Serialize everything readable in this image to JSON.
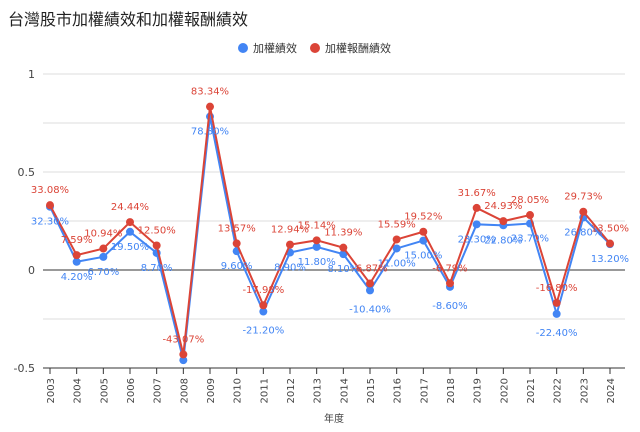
{
  "chart_data": {
    "type": "line",
    "title": "台灣股市加權績效和加權報酬績效",
    "xlabel": "年度",
    "ylabel": "",
    "ylim": [
      -0.5,
      1
    ],
    "yticks": [
      "1",
      "0.5",
      "0",
      "-0.5"
    ],
    "grid": true,
    "legend_position": "top",
    "categories": [
      "2003",
      "2004",
      "2005",
      "2006",
      "2007",
      "2008",
      "2009",
      "2010",
      "2011",
      "2012",
      "2013",
      "2014",
      "2015",
      "2016",
      "2017",
      "2018",
      "2019",
      "2020",
      "2021",
      "2022",
      "2023",
      "2024"
    ],
    "series": [
      {
        "name": "加權績效",
        "color": "#4285f4",
        "values": [
          0.323,
          0.042,
          0.067,
          0.195,
          0.087,
          -0.46,
          0.783,
          0.096,
          -0.212,
          0.089,
          0.118,
          0.081,
          -0.104,
          0.11,
          0.15,
          -0.086,
          0.233,
          0.228,
          0.237,
          -0.224,
          0.268,
          0.132
        ],
        "labels": [
          "32.30%",
          "4.20%",
          "6.70%",
          "19.50%",
          "8.70%",
          null,
          "78.30%",
          "9.60%",
          "-21.20%",
          "8.90%",
          "11.80%",
          "8.10%",
          "-10.40%",
          "11.00%",
          "15.00%",
          "-8.60%",
          "23.30%",
          "22.80%",
          "23.70%",
          "-22.40%",
          "26.80%",
          "13.20%"
        ]
      },
      {
        "name": "加權報酬績效",
        "color": "#db4437",
        "values": [
          0.3308,
          0.0759,
          0.1094,
          0.2444,
          0.125,
          -0.4307,
          0.8334,
          0.1357,
          -0.1798,
          0.1294,
          0.1514,
          0.1139,
          -0.0687,
          0.1559,
          0.1952,
          -0.0679,
          0.3167,
          0.2493,
          0.2805,
          -0.168,
          0.2973,
          0.135
        ],
        "labels": [
          "33.08%",
          "7.59%",
          "10.94%",
          "24.44%",
          "12.50%",
          "-43.07%",
          "83.34%",
          "13.57%",
          "-17.98%",
          "12.94%",
          "15.14%",
          "11.39%",
          "-6.87%",
          "15.59%",
          "19.52%",
          "-6.79%",
          "31.67%",
          "24.93%",
          "28.05%",
          "-16.80%",
          "29.73%",
          "13.50%"
        ]
      }
    ]
  }
}
